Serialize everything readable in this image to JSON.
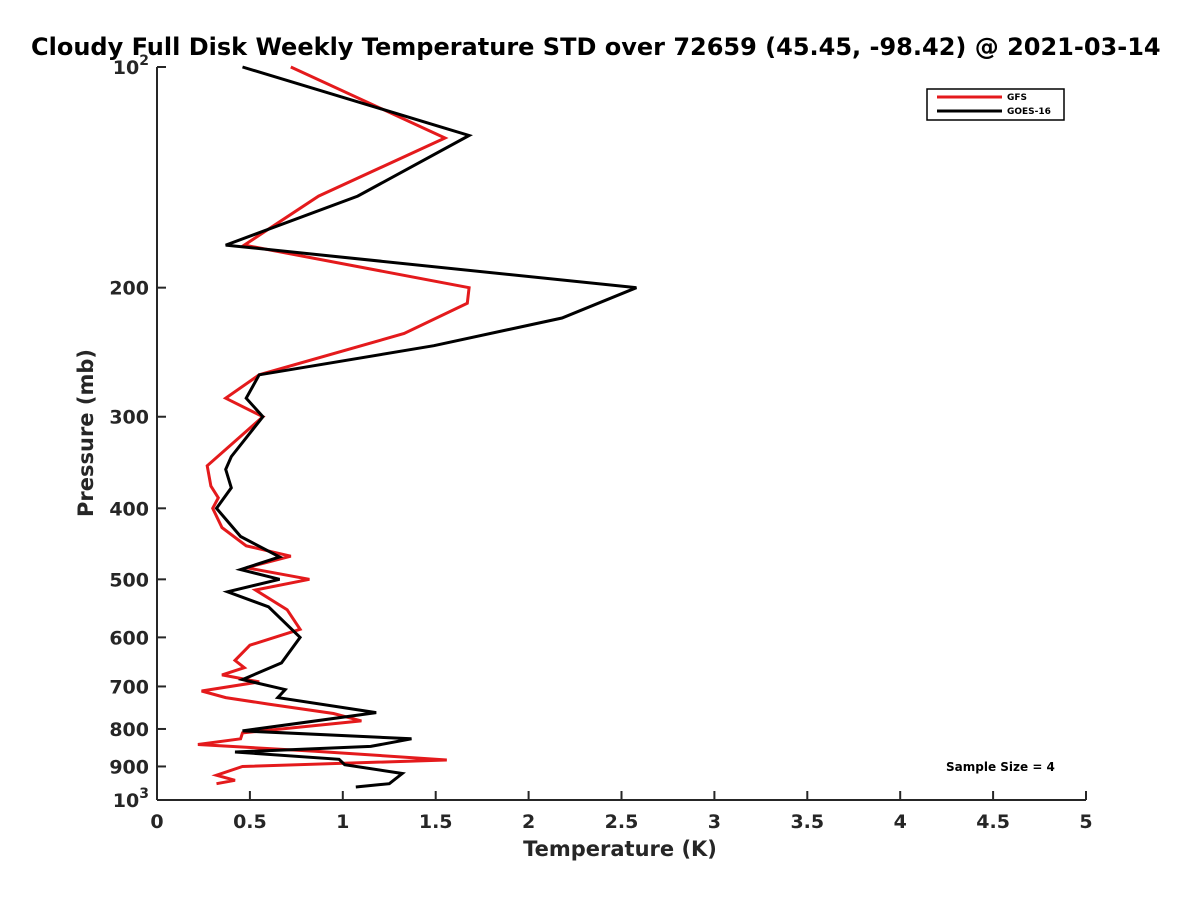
{
  "chart_data": {
    "type": "line",
    "title": "Cloudy Full Disk Weekly Temperature STD over 72659 (45.45, -98.42) @ 2021-03-14",
    "xlabel": "Temperature (K)",
    "ylabel": "Pressure (mb)",
    "xlim": [
      0,
      5
    ],
    "ylim": [
      100,
      1000
    ],
    "yscale": "log",
    "y_reversed": true,
    "x_ticks": [
      "0",
      "0.5",
      "1",
      "1.5",
      "2",
      "2.5",
      "3",
      "3.5",
      "4",
      "4.5",
      "5"
    ],
    "y_ticks": [
      {
        "value": 100,
        "base": "10",
        "exp": "2"
      },
      {
        "value": 200,
        "label": "200"
      },
      {
        "value": 300,
        "label": "300"
      },
      {
        "value": 400,
        "label": "400"
      },
      {
        "value": 500,
        "label": "500"
      },
      {
        "value": 600,
        "label": "600"
      },
      {
        "value": 700,
        "label": "700"
      },
      {
        "value": 800,
        "label": "800"
      },
      {
        "value": 900,
        "label": "900"
      },
      {
        "value": 1000,
        "base": "10",
        "exp": "3"
      }
    ],
    "grid": false,
    "legend_position": "top-right",
    "annotation": "Sample Size = 4",
    "series": [
      {
        "name": "GFS",
        "color": "#e41a1c",
        "points": [
          [
            0.72,
            100
          ],
          [
            1.55,
            125
          ],
          [
            0.87,
            150
          ],
          [
            0.47,
            175
          ],
          [
            1.68,
            200
          ],
          [
            1.67,
            210
          ],
          [
            1.33,
            231
          ],
          [
            0.55,
            263
          ],
          [
            0.37,
            283
          ],
          [
            0.57,
            300
          ],
          [
            0.27,
            350
          ],
          [
            0.29,
            373
          ],
          [
            0.33,
            387
          ],
          [
            0.3,
            400
          ],
          [
            0.35,
            425
          ],
          [
            0.48,
            450
          ],
          [
            0.72,
            465
          ],
          [
            0.48,
            482
          ],
          [
            0.82,
            500
          ],
          [
            0.53,
            517
          ],
          [
            0.7,
            550
          ],
          [
            0.77,
            585
          ],
          [
            0.5,
            615
          ],
          [
            0.42,
            645
          ],
          [
            0.47,
            660
          ],
          [
            0.35,
            675
          ],
          [
            0.55,
            690
          ],
          [
            0.24,
            710
          ],
          [
            0.37,
            725
          ],
          [
            0.6,
            740
          ],
          [
            0.95,
            762
          ],
          [
            1.1,
            780
          ],
          [
            0.46,
            810
          ],
          [
            0.45,
            825
          ],
          [
            0.22,
            840
          ],
          [
            0.85,
            858
          ],
          [
            1.56,
            882
          ],
          [
            0.46,
            900
          ],
          [
            0.32,
            925
          ],
          [
            0.42,
            940
          ],
          [
            0.32,
            950
          ]
        ]
      },
      {
        "name": "GOES-16",
        "color": "#000000",
        "points": [
          [
            0.46,
            100
          ],
          [
            1.68,
            124
          ],
          [
            1.08,
            150
          ],
          [
            0.37,
            175
          ],
          [
            2.58,
            200
          ],
          [
            2.18,
            220
          ],
          [
            1.49,
            240
          ],
          [
            0.55,
            263
          ],
          [
            0.48,
            283
          ],
          [
            0.57,
            300
          ],
          [
            0.4,
            340
          ],
          [
            0.37,
            354
          ],
          [
            0.4,
            375
          ],
          [
            0.32,
            400
          ],
          [
            0.45,
            437
          ],
          [
            0.66,
            466
          ],
          [
            0.45,
            485
          ],
          [
            0.66,
            500
          ],
          [
            0.38,
            520
          ],
          [
            0.6,
            545
          ],
          [
            0.77,
            600
          ],
          [
            0.67,
            650
          ],
          [
            0.46,
            685
          ],
          [
            0.69,
            707
          ],
          [
            0.65,
            725
          ],
          [
            1.18,
            760
          ],
          [
            0.46,
            805
          ],
          [
            1.37,
            825
          ],
          [
            1.15,
            845
          ],
          [
            0.42,
            860
          ],
          [
            0.98,
            880
          ],
          [
            1.01,
            895
          ],
          [
            1.32,
            920
          ],
          [
            1.25,
            950
          ],
          [
            1.07,
            960
          ]
        ]
      }
    ]
  }
}
